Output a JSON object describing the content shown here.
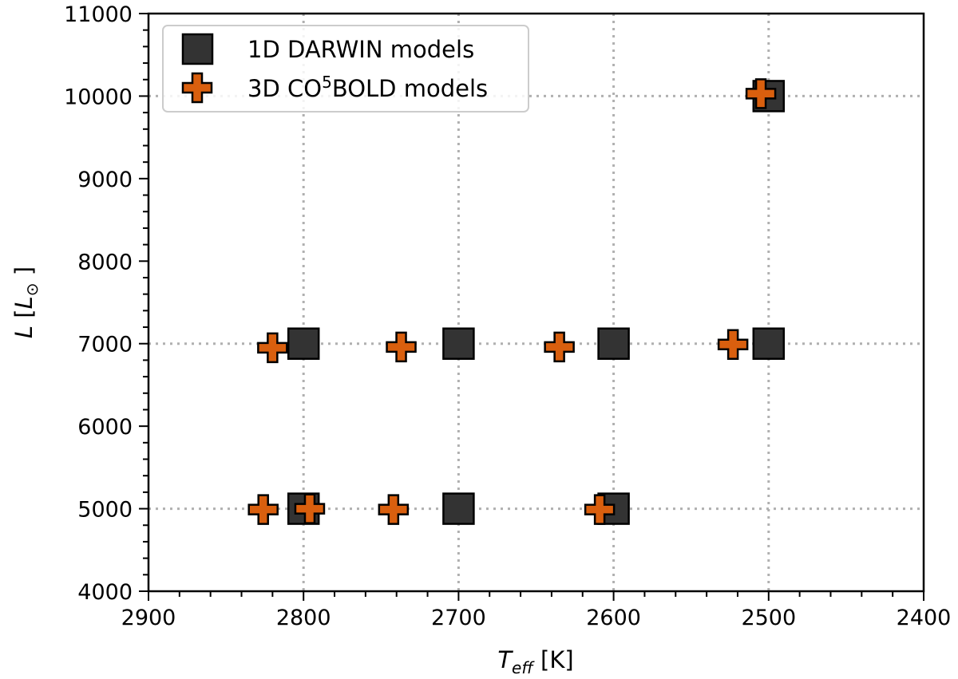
{
  "chart_data": {
    "type": "scatter",
    "title": "",
    "xlabel": {
      "main": "T",
      "sub": "eff",
      "unit": " [K]"
    },
    "ylabel": {
      "main": "L",
      "open": " [",
      "sym": "L",
      "sub": "⊙",
      "close": " ]"
    },
    "xlim": [
      2900,
      2400
    ],
    "ylim": [
      4000,
      11000
    ],
    "x_ticks": [
      2900,
      2800,
      2700,
      2600,
      2500,
      2400
    ],
    "y_ticks": [
      4000,
      5000,
      6000,
      7000,
      8000,
      9000,
      10000,
      11000
    ],
    "x_grid": [
      2800,
      2700,
      2600,
      2500
    ],
    "y_grid": [
      5000,
      7000,
      10000
    ],
    "grid": true,
    "legend_position": "top-left",
    "series": [
      {
        "name": "1D DARWIN models",
        "marker": "square",
        "color": "#333333",
        "points": [
          [
            2500,
            10000
          ],
          [
            2800,
            7000
          ],
          [
            2700,
            7000
          ],
          [
            2600,
            7000
          ],
          [
            2500,
            7000
          ],
          [
            2800,
            5000
          ],
          [
            2700,
            5000
          ],
          [
            2600,
            5000
          ]
        ]
      },
      {
        "name": "3D CO5BOLD models",
        "marker": "plus",
        "color": "#d95f0e",
        "points": [
          [
            2505,
            10030
          ],
          [
            2820,
            6950
          ],
          [
            2737,
            6960
          ],
          [
            2635,
            6960
          ],
          [
            2523,
            6990
          ],
          [
            2826,
            4990
          ],
          [
            2796,
            5000
          ],
          [
            2742,
            4990
          ],
          [
            2609,
            4990
          ]
        ]
      }
    ]
  },
  "legend": {
    "entries": [
      {
        "label": "1D DARWIN models"
      },
      {
        "label_pre": "3D CO",
        "label_sup": "5",
        "label_post": "BOLD models"
      }
    ]
  }
}
